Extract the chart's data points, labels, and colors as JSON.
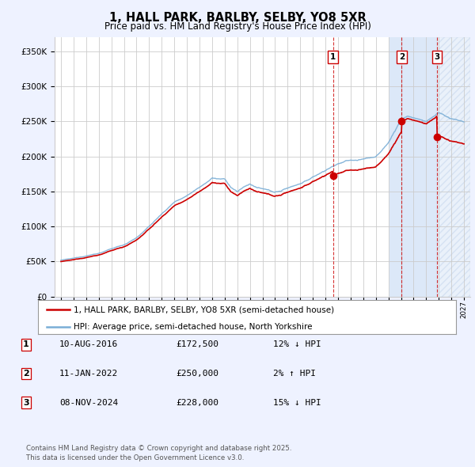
{
  "title": "1, HALL PARK, BARLBY, SELBY, YO8 5XR",
  "subtitle": "Price paid vs. HM Land Registry's House Price Index (HPI)",
  "yticks": [
    0,
    50000,
    100000,
    150000,
    200000,
    250000,
    300000,
    350000
  ],
  "ylim": [
    0,
    370000
  ],
  "xlim_start": 1994.5,
  "xlim_end": 2027.5,
  "legend_line1": "1, HALL PARK, BARLBY, SELBY, YO8 5XR (semi-detached house)",
  "legend_line2": "HPI: Average price, semi-detached house, North Yorkshire",
  "transactions": [
    {
      "num": 1,
      "date": "10-AUG-2016",
      "price": 172500,
      "pct": "12%",
      "dir": "↓",
      "x_year": 2016.6
    },
    {
      "num": 2,
      "date": "11-JAN-2022",
      "price": 250000,
      "pct": "2%",
      "dir": "↑",
      "x_year": 2022.05
    },
    {
      "num": 3,
      "date": "08-NOV-2024",
      "price": 228000,
      "pct": "15%",
      "dir": "↓",
      "x_year": 2024.85
    }
  ],
  "footer": "Contains HM Land Registry data © Crown copyright and database right 2025.\nThis data is licensed under the Open Government Licence v3.0.",
  "bg_color": "#eef2ff",
  "plot_bg": "#ffffff",
  "red_color": "#cc0000",
  "blue_color": "#7aaed6",
  "shade_color": "#dce8f8",
  "hatch_color": "#c8d8ee",
  "vline_color": "#cc0000",
  "shade_start": 2021.0,
  "hatch_start": 2024.85
}
